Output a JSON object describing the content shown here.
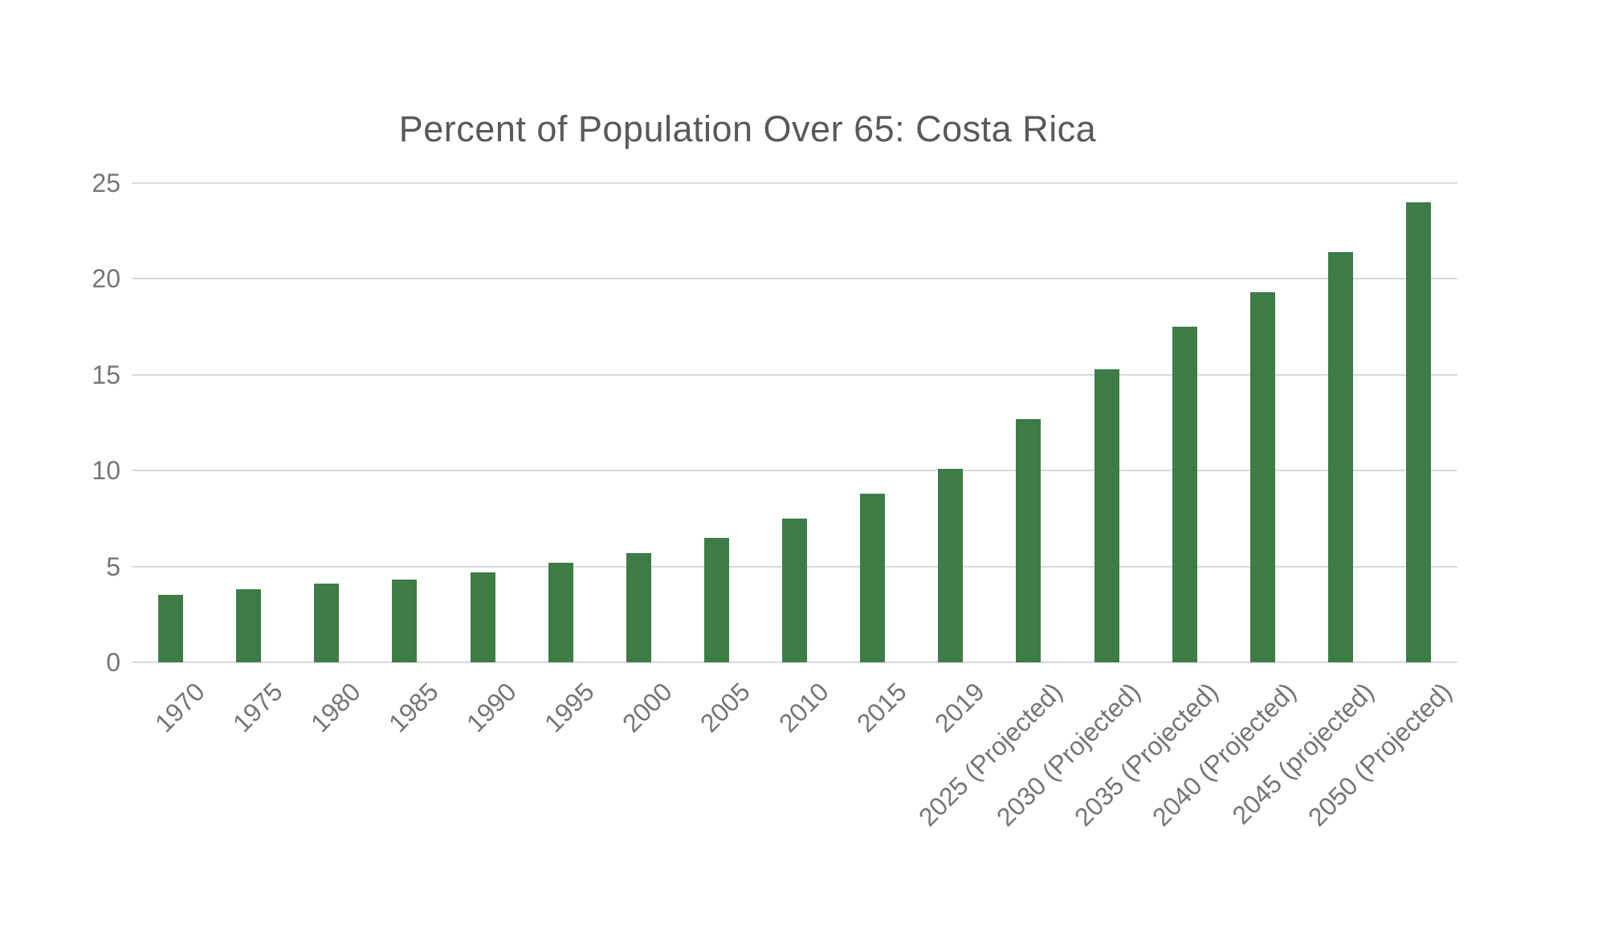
{
  "chart_data": {
    "type": "bar",
    "title": "Percent of Population Over 65: Costa Rica",
    "categories": [
      "1970",
      "1975",
      "1980",
      "1985",
      "1990",
      "1995",
      "2000",
      "2005",
      "2010",
      "2015",
      "2019",
      "2025 (Projected)",
      "2030 (Projected)",
      "2035 (Projected)",
      "2040 (Projected)",
      "2045 (projected)",
      "2050 (Projected)"
    ],
    "values": [
      3.5,
      3.8,
      4.1,
      4.3,
      4.7,
      5.2,
      5.7,
      6.5,
      7.5,
      8.8,
      10.1,
      12.7,
      15.3,
      17.5,
      19.3,
      21.4,
      24.0
    ],
    "xlabel": "",
    "ylabel": "",
    "ylim": [
      0,
      25
    ],
    "yticks": [
      0,
      5,
      10,
      15,
      20,
      25
    ],
    "grid": "horizontal",
    "legend": "none",
    "x_tick_rotation_deg": -45
  },
  "colors": {
    "bar": "#3e7c46",
    "gridline": "#d9d9d9",
    "axis_labels": "#757575",
    "title": "#595959",
    "background": "#ffffff"
  }
}
